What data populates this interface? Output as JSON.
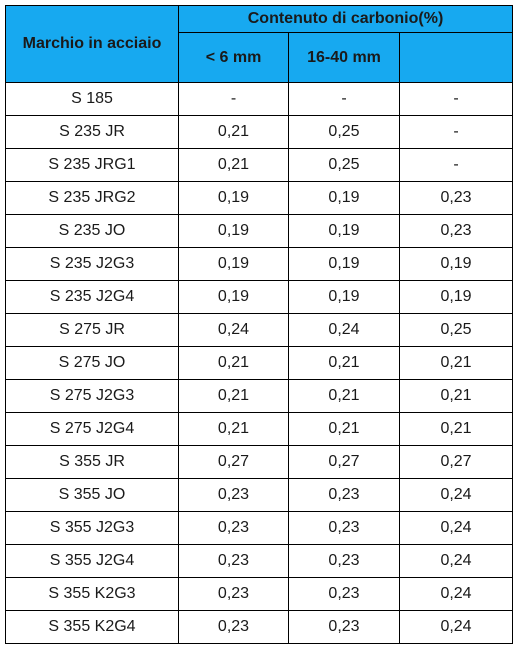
{
  "table": {
    "headers": {
      "brand": "Marchio in acciaio",
      "carbon_group": "Contenuto di carbonio(%)",
      "sub": [
        "< 6 mm",
        "16-40 mm",
        ""
      ]
    },
    "rows": [
      [
        "S 185",
        "-",
        "-",
        "-"
      ],
      [
        "S 235 JR",
        "0,21",
        "0,25",
        "-"
      ],
      [
        "S 235 JRG1",
        "0,21",
        "0,25",
        "-"
      ],
      [
        "S 235 JRG2",
        "0,19",
        "0,19",
        "0,23"
      ],
      [
        "S 235 JO",
        "0,19",
        "0,19",
        "0,23"
      ],
      [
        "S 235 J2G3",
        "0,19",
        "0,19",
        "0,19"
      ],
      [
        "S 235 J2G4",
        "0,19",
        "0,19",
        "0,19"
      ],
      [
        "S 275 JR",
        "0,24",
        "0,24",
        "0,25"
      ],
      [
        "S 275 JO",
        "0,21",
        "0,21",
        "0,21"
      ],
      [
        "S 275 J2G3",
        "0,21",
        "0,21",
        "0,21"
      ],
      [
        "S 275 J2G4",
        "0,21",
        "0,21",
        "0,21"
      ],
      [
        "S 355 JR",
        "0,27",
        "0,27",
        "0,27"
      ],
      [
        "S 355 JO",
        "0,23",
        "0,23",
        "0,24"
      ],
      [
        "S 355 J2G3",
        "0,23",
        "0,23",
        "0,24"
      ],
      [
        "S 355 J2G4",
        "0,23",
        "0,23",
        "0,24"
      ],
      [
        "S 355 K2G3",
        "0,23",
        "0,23",
        "0,24"
      ],
      [
        "S 355 K2G4",
        "0,23",
        "0,23",
        "0,24"
      ]
    ]
  },
  "colors": {
    "header_bg": "#17a9f0",
    "border": "#000000",
    "text": "#1a1a1a"
  }
}
